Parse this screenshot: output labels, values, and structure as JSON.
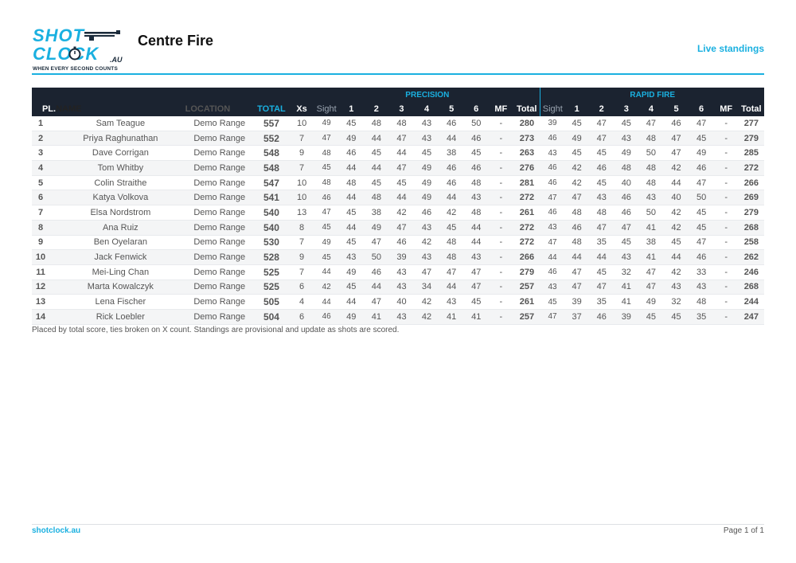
{
  "logo": {
    "line1": "SHOT",
    "line2": "CLOCK",
    "suffix": ".AU",
    "tagline": "WHEN EVERY SECOND COUNTS"
  },
  "header": {
    "title": "Centre Fire",
    "status": "Live standings"
  },
  "colors": {
    "accent": "#1ab0e0",
    "header_bg": "#1b2330"
  },
  "groups": {
    "precision": "PRECISION",
    "rapid": "RAPID FIRE"
  },
  "columns": {
    "pl": "PL.",
    "name": "NAME",
    "location": "LOCATION",
    "total": "TOTAL",
    "xs": "Xs",
    "sight": "Sight",
    "s1": "1",
    "s2": "2",
    "s3": "3",
    "s4": "4",
    "s5": "5",
    "s6": "6",
    "mf": "MF",
    "stage_total": "Total"
  },
  "rows": [
    {
      "pl": "1",
      "name": "Sam Teague",
      "location": "Demo Range",
      "total": "557",
      "xs": "10",
      "p": [
        "49",
        "45",
        "48",
        "48",
        "43",
        "46",
        "50",
        "-",
        "280"
      ],
      "r": [
        "39",
        "45",
        "47",
        "45",
        "47",
        "46",
        "47",
        "-",
        "277"
      ]
    },
    {
      "pl": "2",
      "name": "Priya Raghunathan",
      "location": "Demo Range",
      "total": "552",
      "xs": "7",
      "p": [
        "47",
        "49",
        "44",
        "47",
        "43",
        "44",
        "46",
        "-",
        "273"
      ],
      "r": [
        "46",
        "49",
        "47",
        "43",
        "48",
        "47",
        "45",
        "-",
        "279"
      ]
    },
    {
      "pl": "3",
      "name": "Dave Corrigan",
      "location": "Demo Range",
      "total": "548",
      "xs": "9",
      "p": [
        "48",
        "46",
        "45",
        "44",
        "45",
        "38",
        "45",
        "-",
        "263"
      ],
      "r": [
        "43",
        "45",
        "45",
        "49",
        "50",
        "47",
        "49",
        "-",
        "285"
      ]
    },
    {
      "pl": "4",
      "name": "Tom Whitby",
      "location": "Demo Range",
      "total": "548",
      "xs": "7",
      "p": [
        "45",
        "44",
        "44",
        "47",
        "49",
        "46",
        "46",
        "-",
        "276"
      ],
      "r": [
        "46",
        "42",
        "46",
        "48",
        "48",
        "42",
        "46",
        "-",
        "272"
      ]
    },
    {
      "pl": "5",
      "name": "Colin Straithe",
      "location": "Demo Range",
      "total": "547",
      "xs": "10",
      "p": [
        "48",
        "48",
        "45",
        "45",
        "49",
        "46",
        "48",
        "-",
        "281"
      ],
      "r": [
        "46",
        "42",
        "45",
        "40",
        "48",
        "44",
        "47",
        "-",
        "266"
      ]
    },
    {
      "pl": "6",
      "name": "Katya Volkova",
      "location": "Demo Range",
      "total": "541",
      "xs": "10",
      "p": [
        "46",
        "44",
        "48",
        "44",
        "49",
        "44",
        "43",
        "-",
        "272"
      ],
      "r": [
        "47",
        "47",
        "43",
        "46",
        "43",
        "40",
        "50",
        "-",
        "269"
      ]
    },
    {
      "pl": "7",
      "name": "Elsa Nordstrom",
      "location": "Demo Range",
      "total": "540",
      "xs": "13",
      "p": [
        "47",
        "45",
        "38",
        "42",
        "46",
        "42",
        "48",
        "-",
        "261"
      ],
      "r": [
        "46",
        "48",
        "48",
        "46",
        "50",
        "42",
        "45",
        "-",
        "279"
      ]
    },
    {
      "pl": "8",
      "name": "Ana Ruiz",
      "location": "Demo Range",
      "total": "540",
      "xs": "8",
      "p": [
        "45",
        "44",
        "49",
        "47",
        "43",
        "45",
        "44",
        "-",
        "272"
      ],
      "r": [
        "43",
        "46",
        "47",
        "47",
        "41",
        "42",
        "45",
        "-",
        "268"
      ]
    },
    {
      "pl": "9",
      "name": "Ben Oyelaran",
      "location": "Demo Range",
      "total": "530",
      "xs": "7",
      "p": [
        "49",
        "45",
        "47",
        "46",
        "42",
        "48",
        "44",
        "-",
        "272"
      ],
      "r": [
        "47",
        "48",
        "35",
        "45",
        "38",
        "45",
        "47",
        "-",
        "258"
      ]
    },
    {
      "pl": "10",
      "name": "Jack Fenwick",
      "location": "Demo Range",
      "total": "528",
      "xs": "9",
      "p": [
        "45",
        "43",
        "50",
        "39",
        "43",
        "48",
        "43",
        "-",
        "266"
      ],
      "r": [
        "44",
        "44",
        "44",
        "43",
        "41",
        "44",
        "46",
        "-",
        "262"
      ]
    },
    {
      "pl": "11",
      "name": "Mei-Ling Chan",
      "location": "Demo Range",
      "total": "525",
      "xs": "7",
      "p": [
        "44",
        "49",
        "46",
        "43",
        "47",
        "47",
        "47",
        "-",
        "279"
      ],
      "r": [
        "46",
        "47",
        "45",
        "32",
        "47",
        "42",
        "33",
        "-",
        "246"
      ]
    },
    {
      "pl": "12",
      "name": "Marta Kowalczyk",
      "location": "Demo Range",
      "total": "525",
      "xs": "6",
      "p": [
        "42",
        "45",
        "44",
        "43",
        "34",
        "44",
        "47",
        "-",
        "257"
      ],
      "r": [
        "43",
        "47",
        "47",
        "41",
        "47",
        "43",
        "43",
        "-",
        "268"
      ]
    },
    {
      "pl": "13",
      "name": "Lena Fischer",
      "location": "Demo Range",
      "total": "505",
      "xs": "4",
      "p": [
        "44",
        "44",
        "47",
        "40",
        "42",
        "43",
        "45",
        "-",
        "261"
      ],
      "r": [
        "45",
        "39",
        "35",
        "41",
        "49",
        "32",
        "48",
        "-",
        "244"
      ]
    },
    {
      "pl": "14",
      "name": "Rick Loebler",
      "location": "Demo Range",
      "total": "504",
      "xs": "6",
      "p": [
        "46",
        "49",
        "41",
        "43",
        "42",
        "41",
        "41",
        "-",
        "257"
      ],
      "r": [
        "47",
        "37",
        "46",
        "39",
        "45",
        "45",
        "35",
        "-",
        "247"
      ]
    }
  ],
  "note": "Placed by total score, ties broken on X count. Standings are provisional and update as shots are scored.",
  "footer": {
    "site": "shotclock.au",
    "page": "Page 1 of 1"
  }
}
